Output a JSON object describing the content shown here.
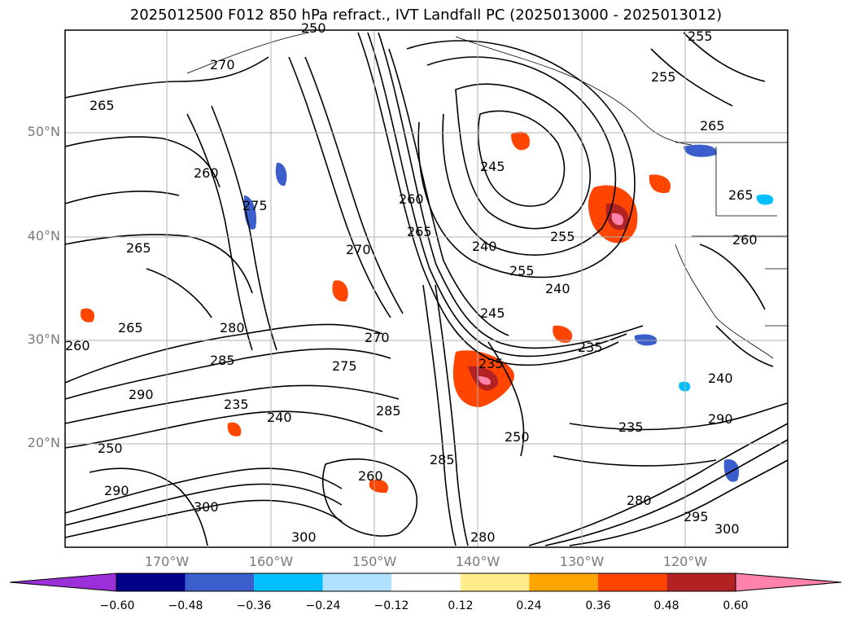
{
  "title": "2025012500 F012 850 hPa refract., IVT Landfall PC (2025013000 - 2025013012)",
  "lat_labels": [
    "50°N",
    "40°N",
    "30°N",
    "20°N"
  ],
  "lon_labels": [
    "170°W",
    "160°W",
    "150°W",
    "140°W",
    "130°W",
    "120°W"
  ],
  "contour_labels": [
    "270",
    "265",
    "260",
    "275",
    "265",
    "265",
    "260",
    "280",
    "285",
    "290",
    "235",
    "240",
    "250",
    "290",
    "300",
    "285",
    "270",
    "275",
    "260",
    "265",
    "245",
    "255",
    "240",
    "255",
    "240",
    "235",
    "235",
    "250",
    "235",
    "240",
    "255",
    "265",
    "265",
    "260",
    "300",
    "285",
    "280",
    "300",
    "295",
    "290",
    "280",
    "270",
    "245",
    "255",
    "250",
    "260"
  ],
  "colorbar": {
    "ticks": [
      "−0.60",
      "−0.48",
      "−0.36",
      "−0.24",
      "−0.12",
      "0.12",
      "0.24",
      "0.36",
      "0.48",
      "0.60"
    ],
    "colors": [
      "#9b30d9",
      "#00008b",
      "#3a5fcd",
      "#00bfff",
      "#b0e2ff",
      "#ffffff",
      "#ffec8b",
      "#ffa500",
      "#ff4500",
      "#b22222",
      "#ff82ab"
    ]
  }
}
